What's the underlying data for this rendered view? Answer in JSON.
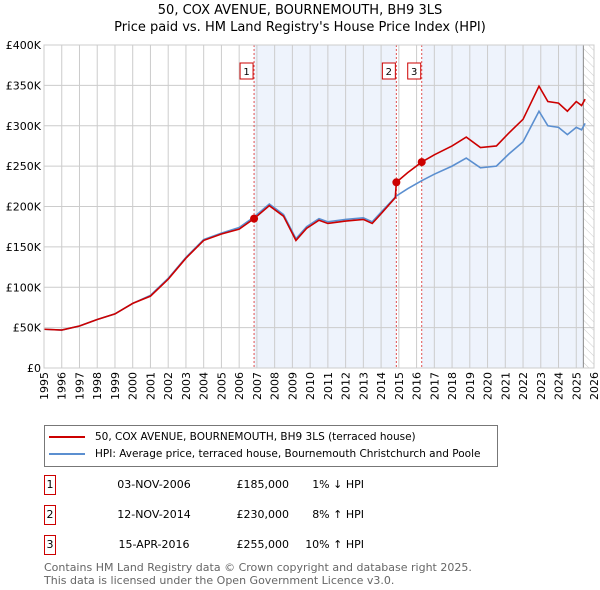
{
  "chart_data": {
    "type": "line",
    "title": "50, COX AVENUE, BOURNEMOUTH, BH9 3LS",
    "subtitle": "Price paid vs. HM Land Registry's House Price Index (HPI)",
    "xlim": [
      1995,
      2026
    ],
    "ylim": [
      0,
      400000
    ],
    "x_ticks": [
      "1995",
      "1996",
      "1997",
      "1998",
      "1999",
      "2000",
      "2001",
      "2002",
      "2003",
      "2004",
      "2005",
      "2006",
      "2007",
      "2008",
      "2009",
      "2010",
      "2011",
      "2012",
      "2013",
      "2014",
      "2015",
      "2016",
      "2017",
      "2018",
      "2019",
      "2020",
      "2021",
      "2022",
      "2023",
      "2024",
      "2025",
      "2026"
    ],
    "y_ticks": [
      {
        "v": 0,
        "l": "£0"
      },
      {
        "v": 50000,
        "l": "£50K"
      },
      {
        "v": 100000,
        "l": "£100K"
      },
      {
        "v": 150000,
        "l": "£150K"
      },
      {
        "v": 200000,
        "l": "£200K"
      },
      {
        "v": 250000,
        "l": "£250K"
      },
      {
        "v": 300000,
        "l": "£300K"
      },
      {
        "v": 350000,
        "l": "£350K"
      },
      {
        "v": 400000,
        "l": "£400K"
      }
    ],
    "series": [
      {
        "name": "50, COX AVENUE, BOURNEMOUTH, BH9 3LS (terraced house)",
        "color": "#cc0000",
        "points": [
          [
            1995,
            48000
          ],
          [
            1996,
            47000
          ],
          [
            1997,
            52000
          ],
          [
            1998,
            60000
          ],
          [
            1999,
            67000
          ],
          [
            2000,
            80000
          ],
          [
            2001,
            89000
          ],
          [
            2002,
            110000
          ],
          [
            2003,
            136000
          ],
          [
            2004,
            158000
          ],
          [
            2005,
            166000
          ],
          [
            2006,
            172000
          ],
          [
            2006.84,
            185000
          ],
          [
            2007.7,
            201000
          ],
          [
            2008.5,
            188000
          ],
          [
            2009.2,
            158000
          ],
          [
            2009.8,
            173000
          ],
          [
            2010.5,
            183000
          ],
          [
            2011,
            179000
          ],
          [
            2012,
            182000
          ],
          [
            2013,
            184000
          ],
          [
            2013.5,
            179000
          ],
          [
            2014,
            191000
          ],
          [
            2014.8,
            211000
          ],
          [
            2014.86,
            230000
          ],
          [
            2015.5,
            242000
          ],
          [
            2016.29,
            255000
          ],
          [
            2017,
            264000
          ],
          [
            2018,
            275000
          ],
          [
            2018.8,
            286000
          ],
          [
            2019.6,
            273000
          ],
          [
            2020.5,
            275000
          ],
          [
            2021.2,
            291000
          ],
          [
            2022,
            308000
          ],
          [
            2022.9,
            349000
          ],
          [
            2023.4,
            330000
          ],
          [
            2024,
            328000
          ],
          [
            2024.5,
            318000
          ],
          [
            2025,
            330000
          ],
          [
            2025.3,
            325000
          ],
          [
            2025.5,
            333000
          ]
        ]
      },
      {
        "name": "HPI: Average price, terraced house, Bournemouth Christchurch and Poole",
        "color": "#5b8fd0",
        "points": [
          [
            1995,
            48000
          ],
          [
            1996,
            47000
          ],
          [
            1997,
            52000
          ],
          [
            1998,
            60000
          ],
          [
            1999,
            67000
          ],
          [
            2000,
            80000
          ],
          [
            2001,
            90000
          ],
          [
            2002,
            111000
          ],
          [
            2003,
            137000
          ],
          [
            2004,
            159000
          ],
          [
            2005,
            167000
          ],
          [
            2006,
            174000
          ],
          [
            2006.84,
            187000
          ],
          [
            2007.7,
            203000
          ],
          [
            2008.5,
            190000
          ],
          [
            2009.2,
            160000
          ],
          [
            2009.8,
            175000
          ],
          [
            2010.5,
            185000
          ],
          [
            2011,
            181000
          ],
          [
            2012,
            184000
          ],
          [
            2013,
            186000
          ],
          [
            2013.5,
            181000
          ],
          [
            2014,
            193000
          ],
          [
            2014.86,
            213000
          ],
          [
            2015.5,
            222000
          ],
          [
            2016.29,
            232000
          ],
          [
            2017,
            240000
          ],
          [
            2018,
            250000
          ],
          [
            2018.8,
            260000
          ],
          [
            2019.6,
            248000
          ],
          [
            2020.5,
            250000
          ],
          [
            2021.2,
            265000
          ],
          [
            2022,
            280000
          ],
          [
            2022.9,
            318000
          ],
          [
            2023.4,
            300000
          ],
          [
            2024,
            298000
          ],
          [
            2024.5,
            289000
          ],
          [
            2025,
            298000
          ],
          [
            2025.3,
            295000
          ],
          [
            2025.5,
            303000
          ]
        ]
      }
    ],
    "sales": [
      {
        "n": "1",
        "x": 2006.84,
        "y": 185000,
        "date": "03-NOV-2006",
        "price": "£185,000",
        "hpi": "1% ↓ HPI"
      },
      {
        "n": "2",
        "x": 2014.86,
        "y": 230000,
        "date": "12-NOV-2014",
        "price": "£230,000",
        "hpi": "8% ↑ HPI"
      },
      {
        "n": "3",
        "x": 2016.29,
        "y": 255000,
        "date": "15-APR-2016",
        "price": "£255,000",
        "hpi": "10% ↑ HPI"
      }
    ],
    "shaded_periods": [
      [
        2006.84,
        2014.86
      ],
      [
        2016.29,
        2025.4
      ]
    ],
    "future_hatch_from": 2025.4
  },
  "footer": [
    "Contains HM Land Registry data © Crown copyright and database right 2025.",
    "This data is licensed under the Open Government Licence v3.0."
  ]
}
